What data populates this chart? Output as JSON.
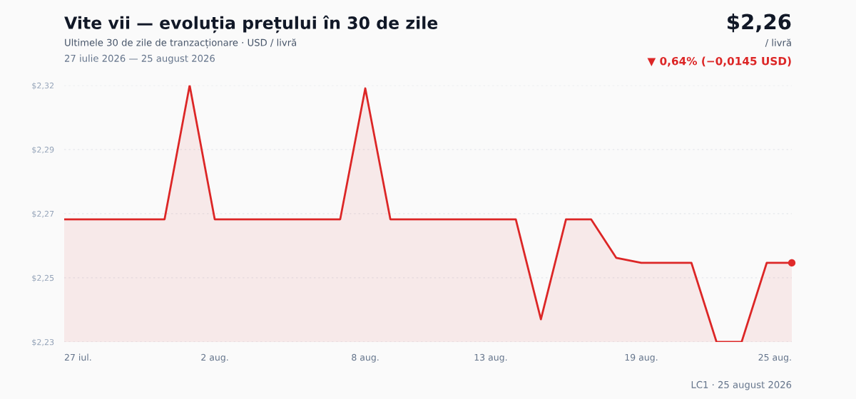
{
  "chart_data": {
    "type": "area",
    "title": "Vite vii — evoluția prețului în 30 de zile",
    "subtitle": "Ultimele 30 de zile de tranzacționare · USD / livră",
    "annotations": [
      "27 iulie 2026 — 25 august 2026",
      "$2,26",
      "/ livră",
      "▼ 0,64% (−0,0145 USD)",
      "LC1 · 25 august 2026"
    ],
    "x": [
      "2026-07-27",
      "2026-07-28",
      "2026-07-29",
      "2026-07-30",
      "2026-07-31",
      "2026-08-01",
      "2026-08-02",
      "2026-08-03",
      "2026-08-04",
      "2026-08-05",
      "2026-08-06",
      "2026-08-07",
      "2026-08-08",
      "2026-08-09",
      "2026-08-10",
      "2026-08-11",
      "2026-08-12",
      "2026-08-13",
      "2026-08-14",
      "2026-08-15",
      "2026-08-16",
      "2026-08-17",
      "2026-08-18",
      "2026-08-19",
      "2026-08-20",
      "2026-08-21",
      "2026-08-22",
      "2026-08-23",
      "2026-08-24",
      "2026-08-25"
    ],
    "series": [
      {
        "color": "#dc2626",
        "values": [
          2.2706,
          2.2706,
          2.2706,
          2.2706,
          2.2706,
          2.3155,
          2.2706,
          2.2706,
          2.2706,
          2.2706,
          2.2706,
          2.2706,
          2.3145,
          2.2706,
          2.2706,
          2.2706,
          2.2706,
          2.2706,
          2.2706,
          2.2371,
          2.2706,
          2.2706,
          2.2577,
          2.256,
          2.256,
          2.256,
          2.2295,
          2.2295,
          2.256,
          2.256
        ]
      },
      {
        "type": "scatter",
        "color": "#e02a2a",
        "x": [
          "2026-08-25"
        ],
        "values": [
          2.256
        ]
      }
    ],
    "xlim": [
      "2026-07-27",
      "2026-08-25"
    ],
    "xticks": [
      {
        "value": "2026-07-27",
        "label": "27 iul."
      },
      {
        "value": "2026-08-02",
        "label": "2 aug."
      },
      {
        "value": "2026-08-08",
        "label": "8 aug."
      },
      {
        "value": "2026-08-13",
        "label": "13 aug."
      },
      {
        "value": "2026-08-19",
        "label": "19 aug."
      },
      {
        "value": "2026-08-25",
        "label": "25 aug."
      }
    ],
    "ylim": [
      2.2295,
      2.3155
    ],
    "yticks": [
      {
        "value": 2.2295,
        "label": "$2,23"
      },
      {
        "value": 2.251,
        "label": "$2,25"
      },
      {
        "value": 2.2725,
        "label": "$2,27"
      },
      {
        "value": 2.294,
        "label": "$2,29"
      },
      {
        "value": 2.3155,
        "label": "$2,32"
      }
    ],
    "grid": "y",
    "legend": false
  }
}
